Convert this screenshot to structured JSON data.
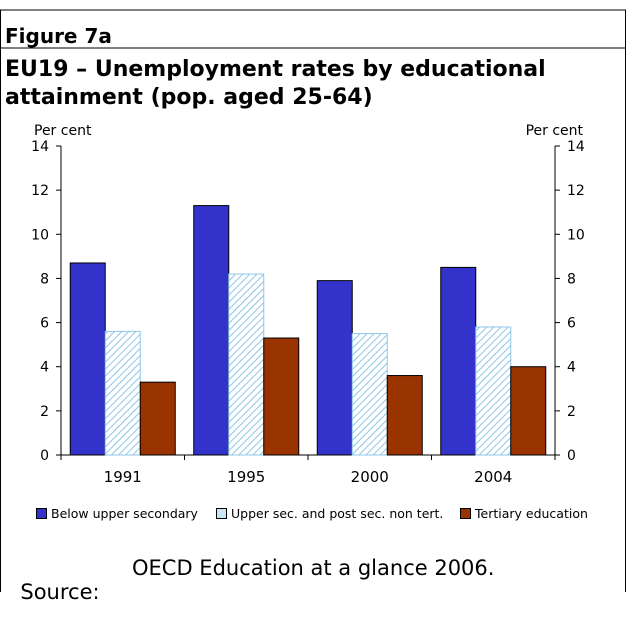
{
  "figure_label": "Figure 7a",
  "title": "EU19 – Unemployment rates by educational attainment (pop. aged 25-64)",
  "source_label": "Source:",
  "source_text": "OECD Education at a glance 2006.",
  "colors": {
    "below_upper_secondary": "#3333cc",
    "upper_secondary": "#c9e6f5",
    "upper_secondary_hatch": "#8fc6e8",
    "tertiary": "#993300"
  },
  "chart_data": {
    "type": "bar",
    "categories": [
      "1991",
      "1995",
      "2000",
      "2004"
    ],
    "series": [
      {
        "name": "Below upper secondary",
        "values": [
          8.7,
          11.3,
          7.9,
          8.5
        ]
      },
      {
        "name": "Upper sec. and post sec. non tert.",
        "values": [
          5.6,
          8.2,
          5.5,
          5.8
        ]
      },
      {
        "name": "Tertiary education",
        "values": [
          3.3,
          5.3,
          3.6,
          4.0
        ]
      }
    ],
    "ylabel_left": "Per cent",
    "ylabel_right": "Per cent",
    "ylim": [
      0,
      14
    ],
    "yticks": [
      0,
      2,
      4,
      6,
      8,
      10,
      12,
      14
    ],
    "grid": false,
    "legend_position": "bottom"
  }
}
